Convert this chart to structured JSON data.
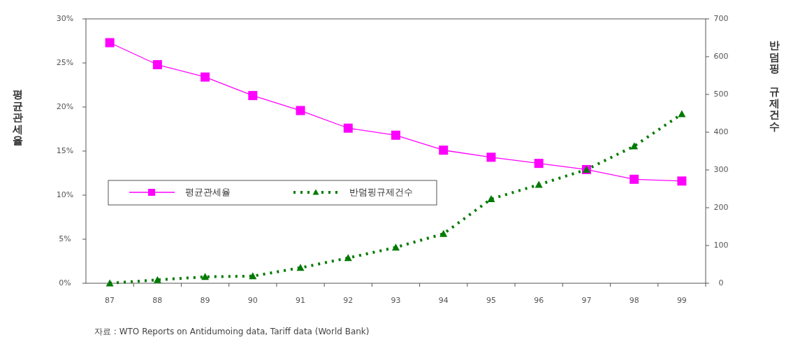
{
  "chart_data": {
    "type": "line",
    "categories": [
      "87",
      "88",
      "89",
      "90",
      "91",
      "92",
      "93",
      "94",
      "95",
      "96",
      "97",
      "98",
      "99"
    ],
    "series": [
      {
        "name": "평균관세율",
        "color": "#ff00ff",
        "marker": "square",
        "line_style": "solid",
        "values": [
          27.3,
          24.8,
          23.4,
          21.3,
          19.6,
          17.6,
          16.8,
          15.1,
          14.3,
          13.6,
          12.9,
          11.8,
          11.6
        ]
      },
      {
        "name": "반덤핑규제건수",
        "color": "#007a00",
        "marker": "triangle",
        "line_style": "dotted",
        "axis": "y2",
        "values": [
          0,
          9,
          17,
          19,
          41,
          67,
          95,
          131,
          223,
          261,
          301,
          363,
          448
        ]
      }
    ],
    "ylabel": "평균관세율",
    "y2label": "반덤핑 규제건수",
    "ylim": [
      0,
      30
    ],
    "yticks": [
      {
        "value": 0,
        "label": "0%"
      },
      {
        "value": 5,
        "label": "5%"
      },
      {
        "value": 10,
        "label": "10%"
      },
      {
        "value": 15,
        "label": "15%"
      },
      {
        "value": 20,
        "label": "20%"
      },
      {
        "value": 25,
        "label": "25%"
      },
      {
        "value": 30,
        "label": "30%"
      }
    ],
    "y2lim": [
      0,
      700
    ],
    "y2ticks": [
      0,
      100,
      200,
      300,
      400,
      500,
      600,
      700
    ],
    "legend": "left",
    "grid": false,
    "annotations": [
      "자료 : WTO Reports on Antidumoing data,  Tariff data (World Bank)"
    ]
  }
}
